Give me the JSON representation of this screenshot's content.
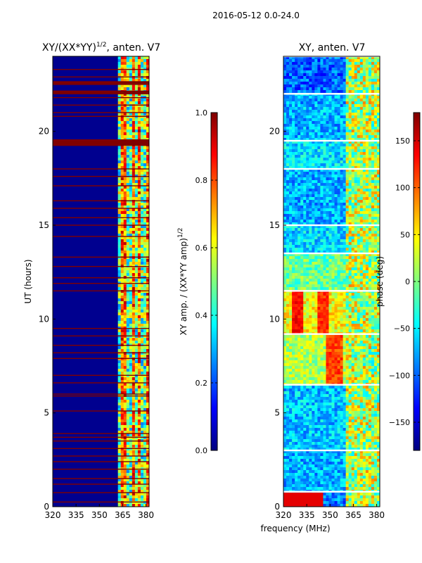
{
  "figure_title": "2016-05-12 0.0-24.0",
  "shared_xlabel": "frequency (MHz)",
  "colors": {
    "saturated": "#800000",
    "background": "#00008f",
    "amp_stops": [
      "#00007f",
      "#0000ff",
      "#007fff",
      "#00ffff",
      "#7fff7f",
      "#ffff00",
      "#ff7f00",
      "#ff0000",
      "#7f0000"
    ],
    "phase_stops": [
      "#00007f",
      "#0000ff",
      "#007fff",
      "#00ffff",
      "#7fff7f",
      "#ffff00",
      "#ff7f00",
      "#ff0000",
      "#7f0000"
    ]
  },
  "chart_data": [
    {
      "type": "heatmap",
      "title": "XY/(XX*YY)",
      "title_exponent": "1/2",
      "title_suffix": ", anten. V7",
      "ylabel": "UT (hours)",
      "xlabel": "",
      "xlim": [
        320,
        382
      ],
      "ylim": [
        0,
        24
      ],
      "xticks": [
        "320",
        "335",
        "350",
        "365",
        "380"
      ],
      "xtick_values": [
        320,
        335,
        350,
        365,
        380
      ],
      "yticks": [
        "0",
        "5",
        "10",
        "15",
        "20"
      ],
      "ytick_values": [
        0,
        5,
        10,
        15,
        20
      ],
      "colorbar": {
        "label": "XY amp. / (XX*YY amp)",
        "label_exponent": "1/2",
        "range": [
          0.0,
          1.0
        ],
        "ticks": [
          "0.0",
          "0.2",
          "0.4",
          "0.6",
          "0.8",
          "1.0"
        ],
        "tick_values": [
          0.0,
          0.2,
          0.4,
          0.6,
          0.8,
          1.0
        ]
      },
      "saturated_rows_ut": [
        0.25,
        0.75,
        1.2,
        1.5,
        2.0,
        2.4,
        2.7,
        3.1,
        3.5,
        3.7,
        3.9,
        5.1,
        5.9,
        6.0,
        6.6,
        7.0,
        7.9,
        8.2,
        8.6,
        9.1,
        9.5,
        11.5,
        11.9,
        12.2,
        12.8,
        13.3,
        14.4,
        15.0,
        15.4,
        15.9,
        16.3,
        17.1,
        17.6,
        18.0,
        19.3,
        19.4,
        19.5,
        20.8,
        21.0,
        21.4,
        21.8,
        22.0,
        22.1,
        22.5,
        22.6,
        22.9,
        23.3
      ],
      "high_channels_mhz": [
        365.5,
        371.5,
        376.0,
        380.5
      ]
    },
    {
      "type": "heatmap",
      "title": "XY, anten. V7",
      "ylabel": "",
      "xlabel": "",
      "xlim": [
        320,
        382
      ],
      "ylim": [
        0,
        24
      ],
      "xticks": [
        "320",
        "335",
        "350",
        "365",
        "380"
      ],
      "xtick_values": [
        320,
        335,
        350,
        365,
        380
      ],
      "yticks": [
        "0",
        "5",
        "10",
        "15",
        "20"
      ],
      "ytick_values": [
        0,
        5,
        10,
        15,
        20
      ],
      "colorbar": {
        "label": "phase (deg)",
        "range": [
          -180,
          180
        ],
        "ticks": [
          "−150",
          "−100",
          "−50",
          "0",
          "50",
          "100",
          "150"
        ],
        "tick_values": [
          -150,
          -100,
          -50,
          0,
          50,
          100,
          150
        ]
      },
      "phase_segments_ut": [
        [
          0,
          0.8
        ],
        [
          0.8,
          3.0
        ],
        [
          3.0,
          6.5
        ],
        [
          6.5,
          9.2
        ],
        [
          9.2,
          11.5
        ],
        [
          11.5,
          13.5
        ],
        [
          13.5,
          15.0
        ],
        [
          15.0,
          18.0
        ],
        [
          18.0,
          19.5
        ],
        [
          19.5,
          22.0
        ],
        [
          22.0,
          24.0
        ]
      ]
    }
  ]
}
